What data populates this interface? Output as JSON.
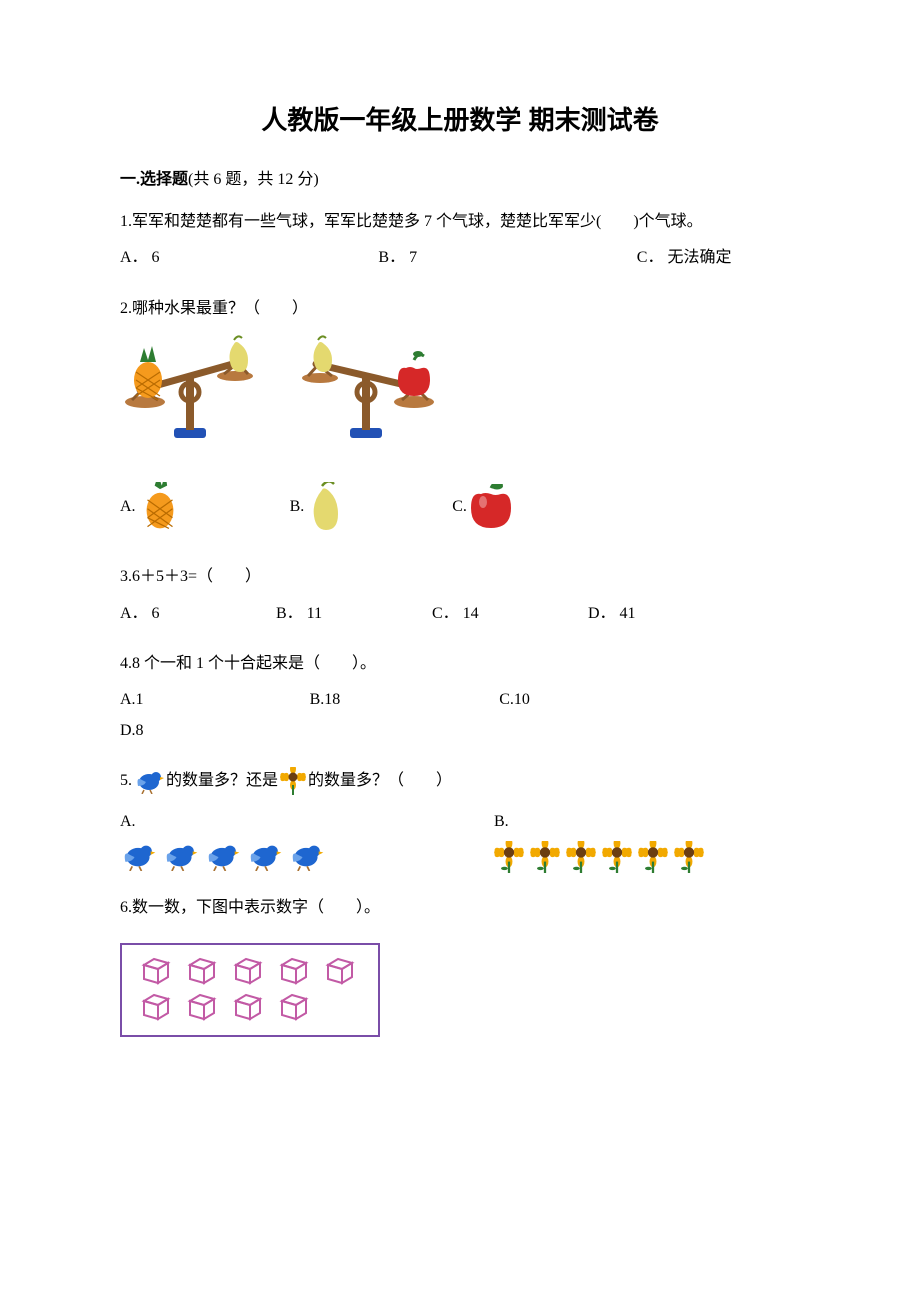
{
  "title": "人教版一年级上册数学 期末测试卷",
  "section1": {
    "prefix": "一.选择题",
    "tail": "(共 6 题，共 12 分)"
  },
  "q1": {
    "text": "1.军军和楚楚都有一些气球，军军比楚楚多 7 个气球，楚楚比军军少(　　)个气球。",
    "a": "A． 6",
    "b": "B． 7",
    "c": "C． 无法确定"
  },
  "q2": {
    "text": "2.哪种水果最重？（　　）",
    "a": "A.",
    "b": "B.",
    "c": "C.",
    "colors": {
      "pineapple_body": "#f59a1d",
      "pineapple_leaf": "#2e7d32",
      "pear_body": "#e4d96f",
      "pear_leaf": "#6b8e23",
      "apple_body": "#d62828",
      "apple_leaf": "#2e7d32",
      "scale_color": "#8b5a2b",
      "scale_accent": "#b8793f",
      "scale_base": "#2251b5"
    }
  },
  "q3": {
    "text": "3.6＋5＋3=（　　）",
    "a": "A． 6",
    "b": "B． 11",
    "c": "C． 14",
    "d": "D． 41"
  },
  "q4": {
    "text": "4.8 个一和 1 个十合起来是（　　）。",
    "a": "A.1",
    "b": "B.18",
    "c": "C.10",
    "d": "D.8"
  },
  "q5": {
    "pre": "5.",
    "mid1": "的数量多？还是",
    "mid2": "的数量多？（　　）",
    "a": "A.",
    "b": "B.",
    "bird_count_a": 5,
    "flower_count_b": 6,
    "colors": {
      "bird": "#1e66d0",
      "bird_accent": "#6aa2ea",
      "flower_petal": "#f2a900",
      "flower_center": "#6b3e12",
      "flower_stem": "#2e7d32"
    }
  },
  "q6": {
    "text": "6.数一数，下图中表示数字（　　）。",
    "cube_color": "#c25aa5",
    "row1": 5,
    "row2": 4
  }
}
